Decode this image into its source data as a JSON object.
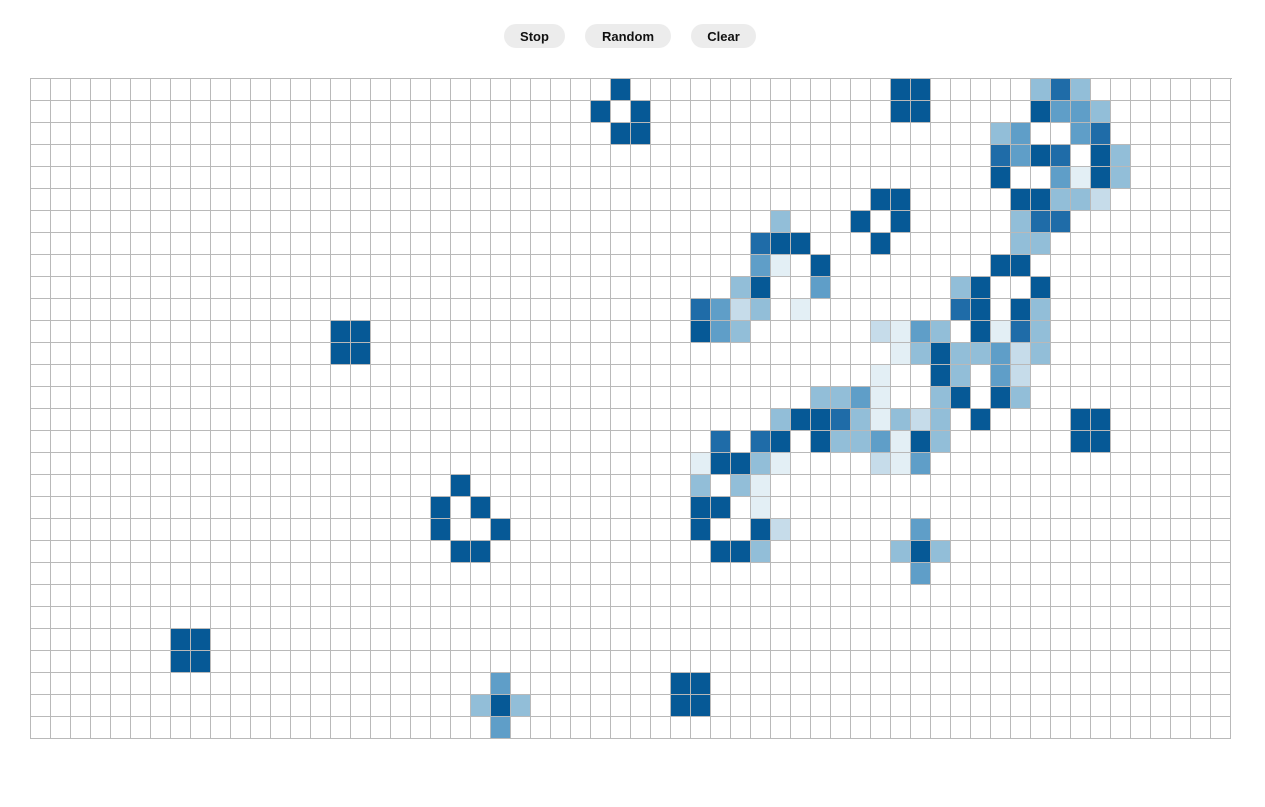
{
  "controls": {
    "stop_label": "Stop",
    "random_label": "Random",
    "clear_label": "Clear"
  },
  "grid": {
    "columns": 60,
    "rows": 30,
    "colors": {
      "empty": "#ffffff",
      "line": "#b9b9b9",
      "alive": "#065996",
      "trail": [
        "#e3eff5",
        "#c6dcea",
        "#92bed8",
        "#5f9ec8",
        "#1f6ca8"
      ]
    },
    "cells": [
      [
        0,
        29,
        6
      ],
      [
        0,
        43,
        6
      ],
      [
        0,
        44,
        6
      ],
      [
        0,
        50,
        3
      ],
      [
        0,
        51,
        5
      ],
      [
        0,
        52,
        3
      ],
      [
        1,
        28,
        6
      ],
      [
        1,
        30,
        6
      ],
      [
        1,
        43,
        6
      ],
      [
        1,
        44,
        6
      ],
      [
        1,
        50,
        6
      ],
      [
        1,
        51,
        4
      ],
      [
        1,
        52,
        4
      ],
      [
        1,
        53,
        3
      ],
      [
        2,
        29,
        6
      ],
      [
        2,
        30,
        6
      ],
      [
        2,
        48,
        3
      ],
      [
        2,
        49,
        4
      ],
      [
        2,
        52,
        4
      ],
      [
        2,
        53,
        5
      ],
      [
        3,
        48,
        5
      ],
      [
        3,
        49,
        4
      ],
      [
        3,
        50,
        6
      ],
      [
        3,
        51,
        5
      ],
      [
        3,
        53,
        6
      ],
      [
        3,
        54,
        3
      ],
      [
        4,
        48,
        6
      ],
      [
        4,
        51,
        4
      ],
      [
        4,
        52,
        1
      ],
      [
        4,
        53,
        6
      ],
      [
        4,
        54,
        3
      ],
      [
        5,
        42,
        6
      ],
      [
        5,
        43,
        6
      ],
      [
        5,
        49,
        6
      ],
      [
        5,
        50,
        6
      ],
      [
        5,
        51,
        3
      ],
      [
        5,
        52,
        3
      ],
      [
        5,
        53,
        2
      ],
      [
        6,
        37,
        3
      ],
      [
        6,
        41,
        6
      ],
      [
        6,
        43,
        6
      ],
      [
        6,
        49,
        3
      ],
      [
        6,
        50,
        5
      ],
      [
        6,
        51,
        5
      ],
      [
        7,
        36,
        5
      ],
      [
        7,
        37,
        6
      ],
      [
        7,
        38,
        6
      ],
      [
        7,
        42,
        6
      ],
      [
        7,
        49,
        3
      ],
      [
        7,
        50,
        3
      ],
      [
        8,
        36,
        4
      ],
      [
        8,
        37,
        1
      ],
      [
        8,
        39,
        6
      ],
      [
        8,
        48,
        6
      ],
      [
        8,
        49,
        6
      ],
      [
        9,
        35,
        3
      ],
      [
        9,
        36,
        6
      ],
      [
        9,
        39,
        4
      ],
      [
        9,
        46,
        3
      ],
      [
        9,
        47,
        6
      ],
      [
        9,
        50,
        6
      ],
      [
        10,
        33,
        5
      ],
      [
        10,
        34,
        4
      ],
      [
        10,
        35,
        2
      ],
      [
        10,
        36,
        3
      ],
      [
        10,
        38,
        1
      ],
      [
        10,
        46,
        5
      ],
      [
        10,
        47,
        6
      ],
      [
        10,
        49,
        6
      ],
      [
        10,
        50,
        3
      ],
      [
        11,
        15,
        6
      ],
      [
        11,
        16,
        6
      ],
      [
        11,
        33,
        6
      ],
      [
        11,
        34,
        4
      ],
      [
        11,
        35,
        3
      ],
      [
        11,
        42,
        2
      ],
      [
        11,
        43,
        1
      ],
      [
        11,
        44,
        4
      ],
      [
        11,
        45,
        3
      ],
      [
        11,
        47,
        6
      ],
      [
        11,
        48,
        1
      ],
      [
        11,
        49,
        5
      ],
      [
        11,
        50,
        3
      ],
      [
        12,
        15,
        6
      ],
      [
        12,
        16,
        6
      ],
      [
        12,
        43,
        1
      ],
      [
        12,
        44,
        3
      ],
      [
        12,
        45,
        6
      ],
      [
        12,
        46,
        3
      ],
      [
        12,
        47,
        3
      ],
      [
        12,
        48,
        4
      ],
      [
        12,
        49,
        2
      ],
      [
        12,
        50,
        3
      ],
      [
        13,
        42,
        1
      ],
      [
        13,
        45,
        6
      ],
      [
        13,
        46,
        3
      ],
      [
        13,
        48,
        4
      ],
      [
        13,
        49,
        2
      ],
      [
        14,
        39,
        3
      ],
      [
        14,
        40,
        3
      ],
      [
        14,
        41,
        4
      ],
      [
        14,
        42,
        1
      ],
      [
        14,
        45,
        3
      ],
      [
        14,
        46,
        6
      ],
      [
        14,
        48,
        6
      ],
      [
        14,
        49,
        3
      ],
      [
        15,
        37,
        3
      ],
      [
        15,
        38,
        6
      ],
      [
        15,
        39,
        6
      ],
      [
        15,
        40,
        5
      ],
      [
        15,
        41,
        3
      ],
      [
        15,
        42,
        1
      ],
      [
        15,
        43,
        3
      ],
      [
        15,
        44,
        2
      ],
      [
        15,
        45,
        3
      ],
      [
        15,
        47,
        6
      ],
      [
        15,
        52,
        6
      ],
      [
        15,
        53,
        6
      ],
      [
        16,
        34,
        5
      ],
      [
        16,
        36,
        5
      ],
      [
        16,
        37,
        6
      ],
      [
        16,
        39,
        6
      ],
      [
        16,
        40,
        3
      ],
      [
        16,
        41,
        3
      ],
      [
        16,
        42,
        4
      ],
      [
        16,
        43,
        1
      ],
      [
        16,
        44,
        6
      ],
      [
        16,
        45,
        3
      ],
      [
        16,
        52,
        6
      ],
      [
        16,
        53,
        6
      ],
      [
        17,
        33,
        1
      ],
      [
        17,
        34,
        6
      ],
      [
        17,
        35,
        6
      ],
      [
        17,
        36,
        3
      ],
      [
        17,
        37,
        1
      ],
      [
        17,
        42,
        2
      ],
      [
        17,
        43,
        1
      ],
      [
        17,
        44,
        4
      ],
      [
        18,
        21,
        6
      ],
      [
        18,
        33,
        3
      ],
      [
        18,
        35,
        3
      ],
      [
        18,
        36,
        1
      ],
      [
        19,
        20,
        6
      ],
      [
        19,
        22,
        6
      ],
      [
        19,
        33,
        6
      ],
      [
        19,
        34,
        6
      ],
      [
        19,
        36,
        1
      ],
      [
        20,
        20,
        6
      ],
      [
        20,
        23,
        6
      ],
      [
        20,
        33,
        6
      ],
      [
        20,
        36,
        6
      ],
      [
        20,
        37,
        2
      ],
      [
        20,
        44,
        4
      ],
      [
        21,
        21,
        6
      ],
      [
        21,
        22,
        6
      ],
      [
        21,
        34,
        6
      ],
      [
        21,
        35,
        6
      ],
      [
        21,
        36,
        3
      ],
      [
        21,
        43,
        3
      ],
      [
        21,
        44,
        6
      ],
      [
        21,
        45,
        3
      ],
      [
        22,
        44,
        4
      ],
      [
        25,
        7,
        6
      ],
      [
        25,
        8,
        6
      ],
      [
        26,
        7,
        6
      ],
      [
        26,
        8,
        6
      ],
      [
        27,
        23,
        4
      ],
      [
        27,
        32,
        6
      ],
      [
        27,
        33,
        6
      ],
      [
        28,
        22,
        3
      ],
      [
        28,
        23,
        6
      ],
      [
        28,
        24,
        3
      ],
      [
        28,
        32,
        6
      ],
      [
        28,
        33,
        6
      ],
      [
        29,
        23,
        4
      ]
    ]
  }
}
